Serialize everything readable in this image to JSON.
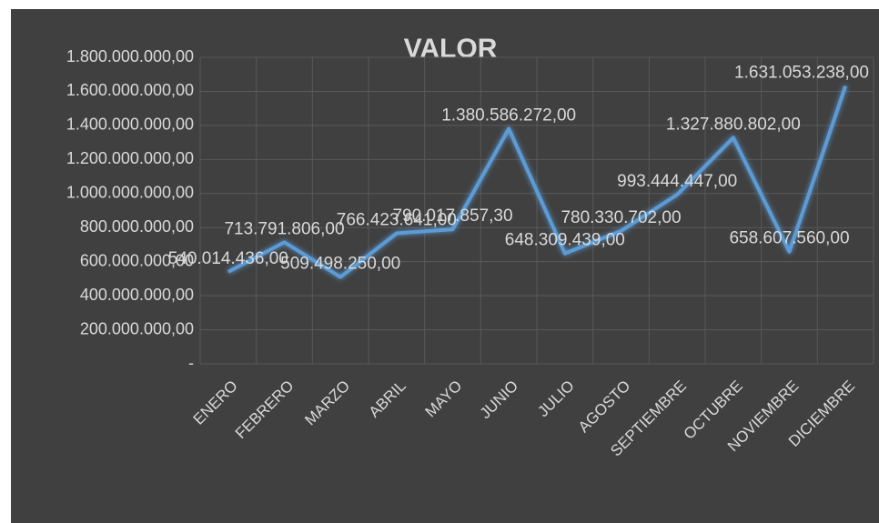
{
  "chart_data": {
    "type": "line",
    "title": "VALOR",
    "categories": [
      "ENERO",
      "FEBRERO",
      "MARZO",
      "ABRIL",
      "MAYO",
      "JUNIO",
      "JULIO",
      "AGOSTO",
      "SEPTIEMBRE",
      "OCTUBRE",
      "NOVIEMBRE",
      "DICIEMBRE"
    ],
    "values": [
      540014436.0,
      713791806.0,
      509498250.0,
      766423641.0,
      790017857.3,
      1380586272.0,
      648309439.0,
      780330702.0,
      993444447.0,
      1327880802.0,
      658607560.0,
      1631053238.0
    ],
    "value_labels": [
      "540.014.436,00",
      "713.791.806,00",
      "509.498.250,00",
      "766.423.641,00",
      "790.017.857,30",
      "1.380.586.272,00",
      "648.309.439,00",
      "780.330.702,00",
      "993.444.447,00",
      "1.327.880.802,00",
      "658.607.560,00",
      "1.631.053.238,00"
    ],
    "color": "#5b9bd5",
    "ylim": [
      0,
      1800000000
    ],
    "yticks": [
      {
        "value": 0,
        "label": "-"
      },
      {
        "value": 200000000,
        "label": "200.000.000,00"
      },
      {
        "value": 400000000,
        "label": "400.000.000,00"
      },
      {
        "value": 600000000,
        "label": "600.000.000,00"
      },
      {
        "value": 800000000,
        "label": "800.000.000,00"
      },
      {
        "value": 1000000000,
        "label": "1.000.000.000,00"
      },
      {
        "value": 1200000000,
        "label": "1.200.000.000,00"
      },
      {
        "value": 1400000000,
        "label": "1.400.000.000,00"
      },
      {
        "value": 1600000000,
        "label": "1.600.000.000,00"
      },
      {
        "value": 1800000000,
        "label": "1.800.000.000,00"
      }
    ],
    "grid": true
  }
}
